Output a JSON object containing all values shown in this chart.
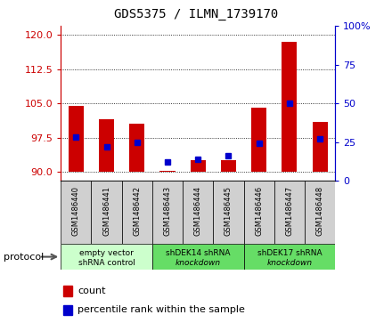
{
  "title": "GDS5375 / ILMN_1739170",
  "samples": [
    "GSM1486440",
    "GSM1486441",
    "GSM1486442",
    "GSM1486443",
    "GSM1486444",
    "GSM1486445",
    "GSM1486446",
    "GSM1486447",
    "GSM1486448"
  ],
  "count_values": [
    104.5,
    101.5,
    100.5,
    90.2,
    92.5,
    92.5,
    104.0,
    118.5,
    101.0
  ],
  "percentile_values": [
    28,
    22,
    25,
    12,
    14,
    16,
    24,
    50,
    27
  ],
  "ylim_left": [
    88,
    122
  ],
  "ylim_right": [
    0,
    100
  ],
  "yticks_left": [
    90,
    97.5,
    105,
    112.5,
    120
  ],
  "yticks_right": [
    0,
    25,
    50,
    75,
    100
  ],
  "bar_color": "#cc0000",
  "dot_color": "#0000cc",
  "bar_bottom": 90,
  "groups": [
    {
      "label": "empty vector\nshRNA control",
      "start": 0,
      "end": 3,
      "color": "#ccffcc"
    },
    {
      "label": "shDEK14 shRNA\nknockdown",
      "start": 3,
      "end": 6,
      "color": "#66dd66"
    },
    {
      "label": "shDEK17 shRNA\nknockdown",
      "start": 6,
      "end": 9,
      "color": "#66dd66"
    }
  ],
  "protocol_label": "protocol",
  "legend_count_label": "count",
  "legend_percentile_label": "percentile rank within the sample",
  "left_axis_color": "#cc0000",
  "right_axis_color": "#0000cc",
  "xtick_bg": "#d0d0d0",
  "title_fontsize": 10,
  "bar_width": 0.5
}
